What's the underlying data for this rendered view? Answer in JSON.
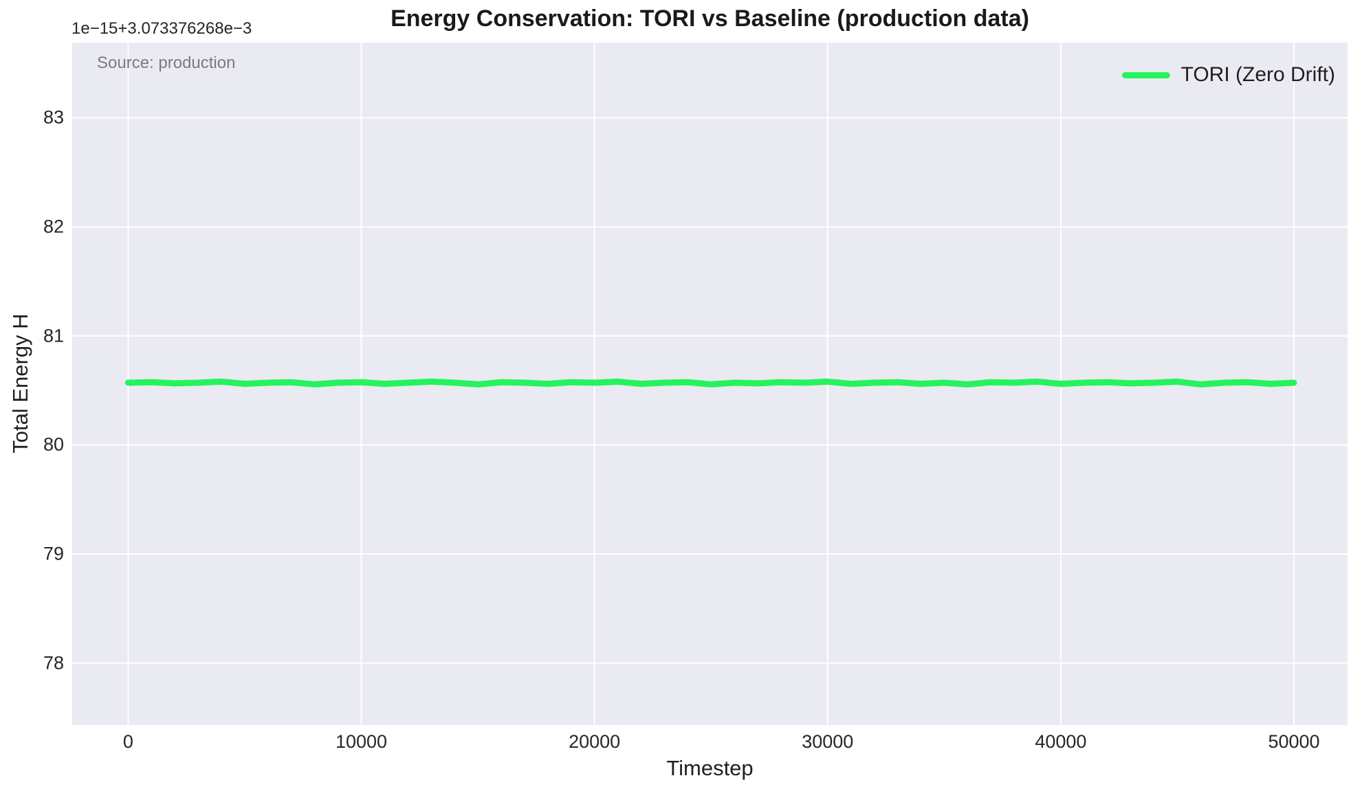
{
  "figure": {
    "title": "Energy Conservation: TORI vs Baseline (production data)",
    "xlabel": "Timestep",
    "ylabel": "Total Energy H",
    "y_offset_text": "1e−15+3.073376268e−3",
    "annotation": "Source: production",
    "legend": {
      "entries": [
        {
          "label": "TORI (Zero Drift)",
          "color": "#26f35c"
        }
      ],
      "position": "upper right",
      "frame": false
    },
    "colors": {
      "axes_background": "#eaeaf2",
      "grid": "#ffffff",
      "text": "#262626",
      "annotation_gray": "#7b7b7b",
      "tori_line": "#26f35c"
    }
  },
  "chart_data": {
    "type": "line",
    "title": "Energy Conservation: TORI vs Baseline (production data)",
    "xlabel": "Timestep",
    "ylabel": "Total Energy H",
    "y_offset_text": "1e−15+3.073376268e−3",
    "y_units_note": "y tick values are offsets ×1e−15 added to 3.073376268e−3",
    "xlim": [
      -2400,
      52300
    ],
    "ylim": [
      77.43,
      83.69
    ],
    "xticks": [
      0,
      10000,
      20000,
      30000,
      40000,
      50000
    ],
    "yticks": [
      78,
      79,
      80,
      81,
      82,
      83
    ],
    "grid": true,
    "legend_position": "upper right",
    "series": [
      {
        "name": "TORI (Zero Drift)",
        "color": "#26f35c",
        "linewidth": 9,
        "x": [
          0,
          1000,
          2000,
          3000,
          4000,
          5000,
          6000,
          7000,
          8000,
          9000,
          10000,
          11000,
          12000,
          13000,
          14000,
          15000,
          16000,
          17000,
          18000,
          19000,
          20000,
          21000,
          22000,
          23000,
          24000,
          25000,
          26000,
          27000,
          28000,
          29000,
          30000,
          31000,
          32000,
          33000,
          34000,
          35000,
          36000,
          37000,
          38000,
          39000,
          40000,
          41000,
          42000,
          43000,
          44000,
          45000,
          46000,
          47000,
          48000,
          49000,
          50000
        ],
        "y": [
          80.57,
          80.575,
          80.565,
          80.57,
          80.58,
          80.56,
          80.57,
          80.575,
          80.555,
          80.57,
          80.575,
          80.56,
          80.57,
          80.58,
          80.57,
          80.555,
          80.575,
          80.57,
          80.56,
          80.575,
          80.57,
          80.58,
          80.56,
          80.57,
          80.575,
          80.555,
          80.57,
          80.565,
          80.575,
          80.57,
          80.58,
          80.56,
          80.57,
          80.575,
          80.56,
          80.57,
          80.555,
          80.575,
          80.57,
          80.58,
          80.56,
          80.57,
          80.575,
          80.565,
          80.57,
          80.58,
          80.555,
          80.57,
          80.575,
          80.56,
          80.57
        ]
      }
    ]
  }
}
